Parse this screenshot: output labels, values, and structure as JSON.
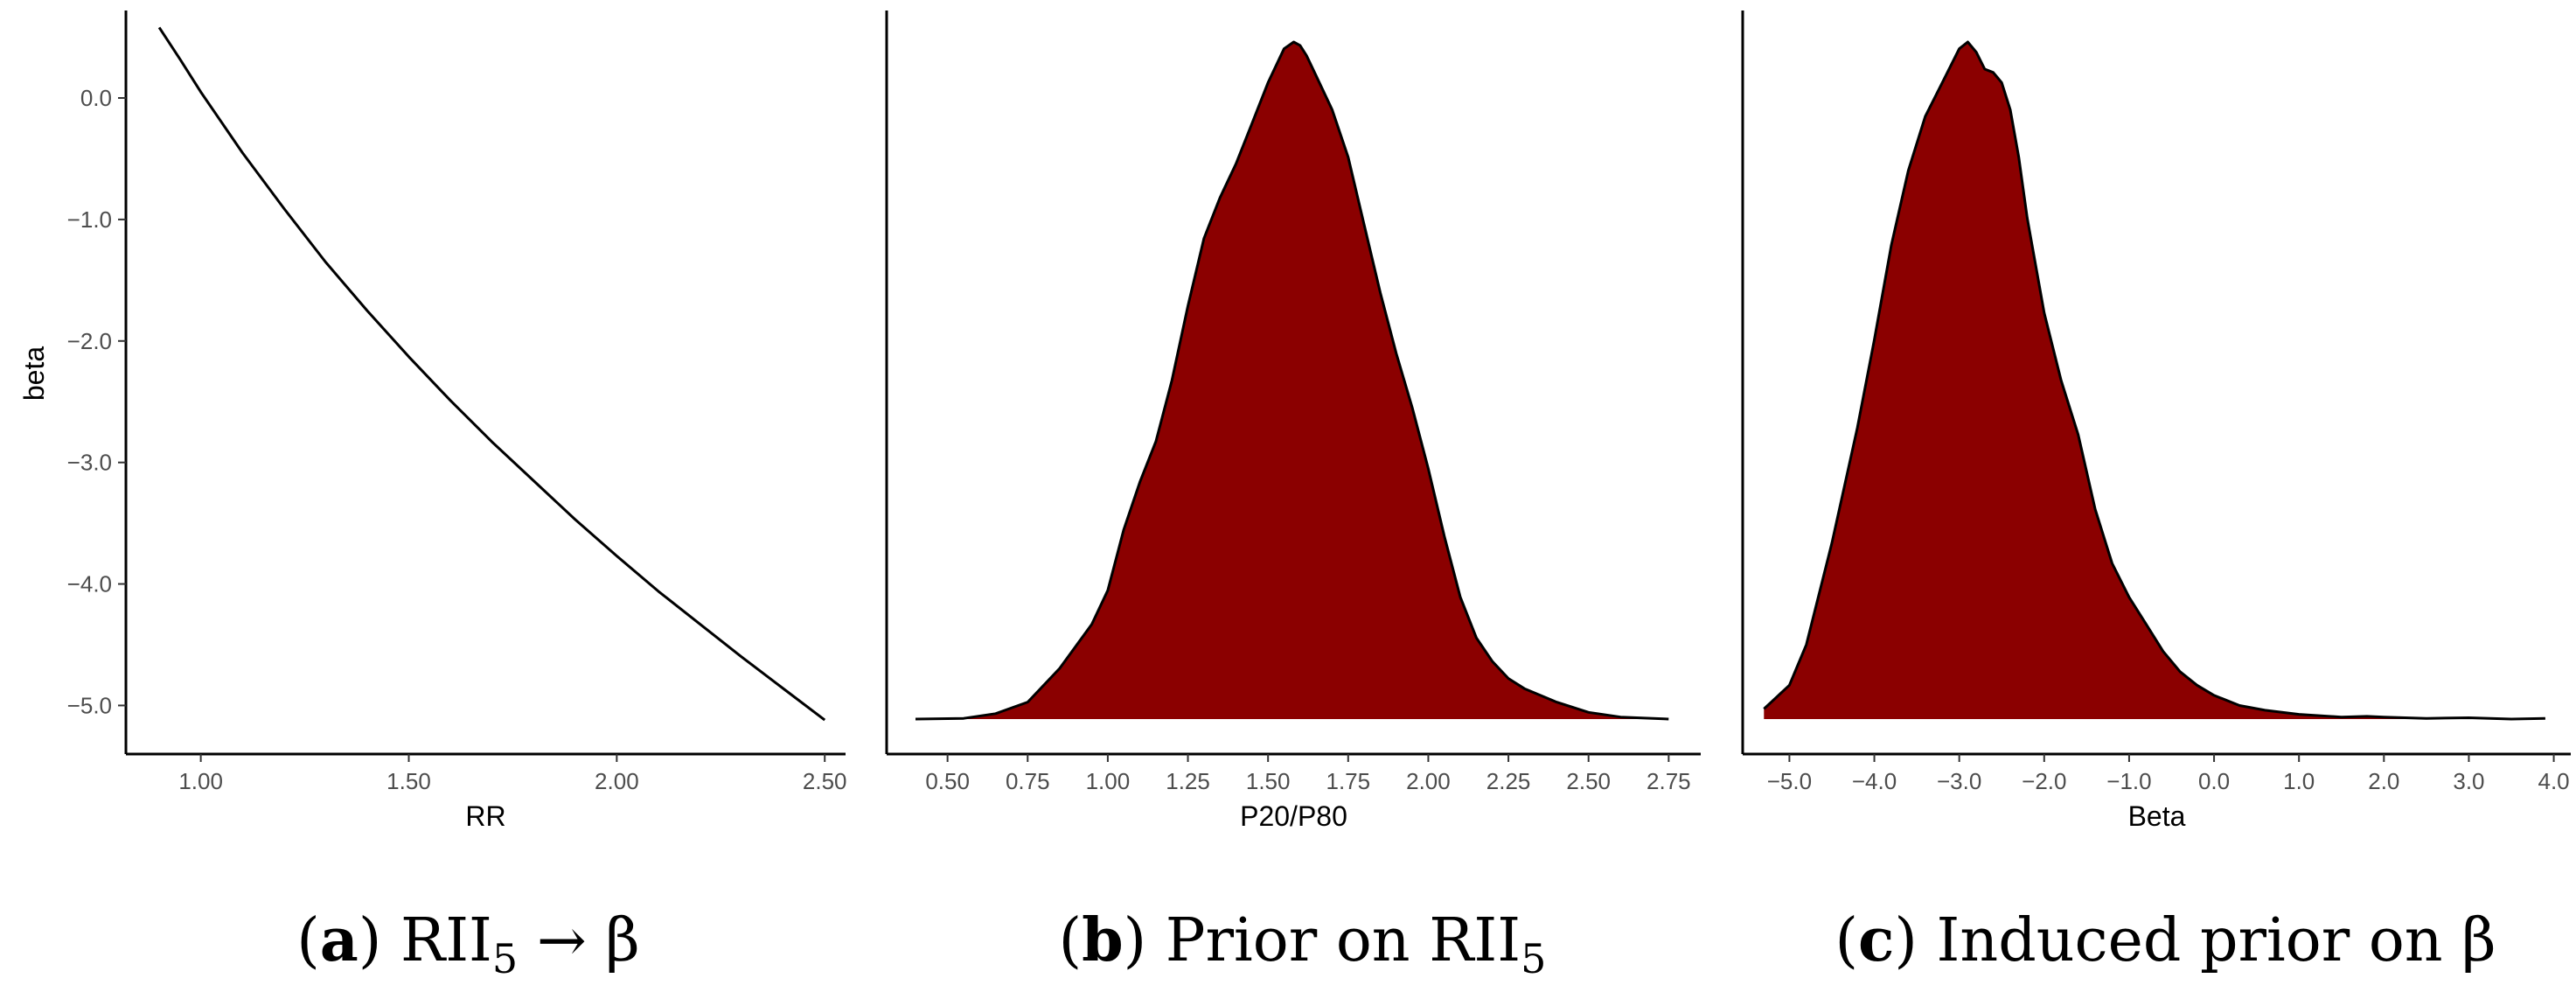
{
  "chart_data": [
    {
      "type": "line",
      "caption": {
        "letter": "a",
        "main": "RII",
        "sub": "5",
        "tail": " → β"
      },
      "xlabel": "RR",
      "ylabel": "beta",
      "xlim": [
        0.82,
        2.55
      ],
      "ylim": [
        -5.4,
        0.72
      ],
      "xticks": [
        "1.00",
        "1.50",
        "2.00",
        "2.50"
      ],
      "yticks": [
        "0.0",
        "−1.0",
        "−2.0",
        "−3.0",
        "−4.0",
        "−5.0"
      ],
      "series": [
        {
          "x": [
            0.9,
            0.95,
            1.0,
            1.1,
            1.2,
            1.3,
            1.4,
            1.5,
            1.6,
            1.7,
            1.8,
            1.9,
            2.0,
            2.1,
            2.2,
            2.3,
            2.4,
            2.5
          ],
          "y": [
            0.58,
            0.32,
            0.05,
            -0.45,
            -0.91,
            -1.35,
            -1.75,
            -2.13,
            -2.49,
            -2.83,
            -3.15,
            -3.47,
            -3.77,
            -4.06,
            -4.33,
            -4.6,
            -4.86,
            -5.12
          ]
        }
      ]
    },
    {
      "type": "area",
      "caption": {
        "letter": "b",
        "main": "Prior on RII",
        "sub": "5",
        "tail": ""
      },
      "xlabel": "P20/P80",
      "xlim": [
        0.31,
        2.85
      ],
      "xticks": [
        "0.50",
        "0.75",
        "1.00",
        "1.25",
        "1.50",
        "1.75",
        "2.00",
        "2.25",
        "2.50",
        "2.75"
      ],
      "fill_color": "#8B0000",
      "series": [
        {
          "x": [
            0.4,
            0.55,
            0.65,
            0.75,
            0.85,
            0.95,
            1.0,
            1.05,
            1.1,
            1.15,
            1.2,
            1.25,
            1.3,
            1.35,
            1.4,
            1.45,
            1.5,
            1.55,
            1.58,
            1.6,
            1.62,
            1.65,
            1.7,
            1.75,
            1.8,
            1.85,
            1.9,
            1.95,
            2.0,
            2.05,
            2.1,
            2.15,
            2.2,
            2.25,
            2.3,
            2.35,
            2.4,
            2.5,
            2.6,
            2.75
          ],
          "y": [
            0.0,
            0.001,
            0.008,
            0.025,
            0.075,
            0.14,
            0.19,
            0.28,
            0.35,
            0.41,
            0.5,
            0.61,
            0.71,
            0.77,
            0.82,
            0.88,
            0.94,
            0.99,
            1.0,
            0.995,
            0.98,
            0.95,
            0.9,
            0.83,
            0.73,
            0.63,
            0.54,
            0.46,
            0.37,
            0.27,
            0.18,
            0.12,
            0.085,
            0.06,
            0.045,
            0.035,
            0.025,
            0.01,
            0.003,
            0.0
          ]
        }
      ]
    },
    {
      "type": "area",
      "caption": {
        "letter": "c",
        "main": "Induced prior on β",
        "sub": "",
        "tail": ""
      },
      "xlabel": "Beta",
      "xlim": [
        -5.55,
        4.2
      ],
      "xticks": [
        "−5.0",
        "−4.0",
        "−3.0",
        "−2.0",
        "−1.0",
        "0.0",
        "1.0",
        "2.0",
        "3.0",
        "4.0"
      ],
      "fill_color": "#8B0000",
      "series": [
        {
          "x": [
            -5.3,
            -5.0,
            -4.8,
            -4.5,
            -4.2,
            -4.0,
            -3.8,
            -3.6,
            -3.4,
            -3.2,
            -3.0,
            -2.9,
            -2.8,
            -2.7,
            -2.6,
            -2.5,
            -2.4,
            -2.3,
            -2.2,
            -2.0,
            -1.8,
            -1.6,
            -1.4,
            -1.2,
            -1.0,
            -0.8,
            -0.6,
            -0.4,
            -0.2,
            0.0,
            0.3,
            0.6,
            1.0,
            1.5,
            1.8,
            2.0,
            2.5,
            3.0,
            3.5,
            3.9
          ],
          "y": [
            0.015,
            0.05,
            0.11,
            0.26,
            0.43,
            0.56,
            0.7,
            0.81,
            0.89,
            0.94,
            0.99,
            1.0,
            0.985,
            0.96,
            0.955,
            0.94,
            0.9,
            0.83,
            0.74,
            0.6,
            0.5,
            0.42,
            0.31,
            0.23,
            0.18,
            0.14,
            0.1,
            0.07,
            0.05,
            0.035,
            0.02,
            0.013,
            0.007,
            0.003,
            0.004,
            0.003,
            0.001,
            0.002,
            0.0,
            0.001
          ]
        }
      ]
    }
  ]
}
